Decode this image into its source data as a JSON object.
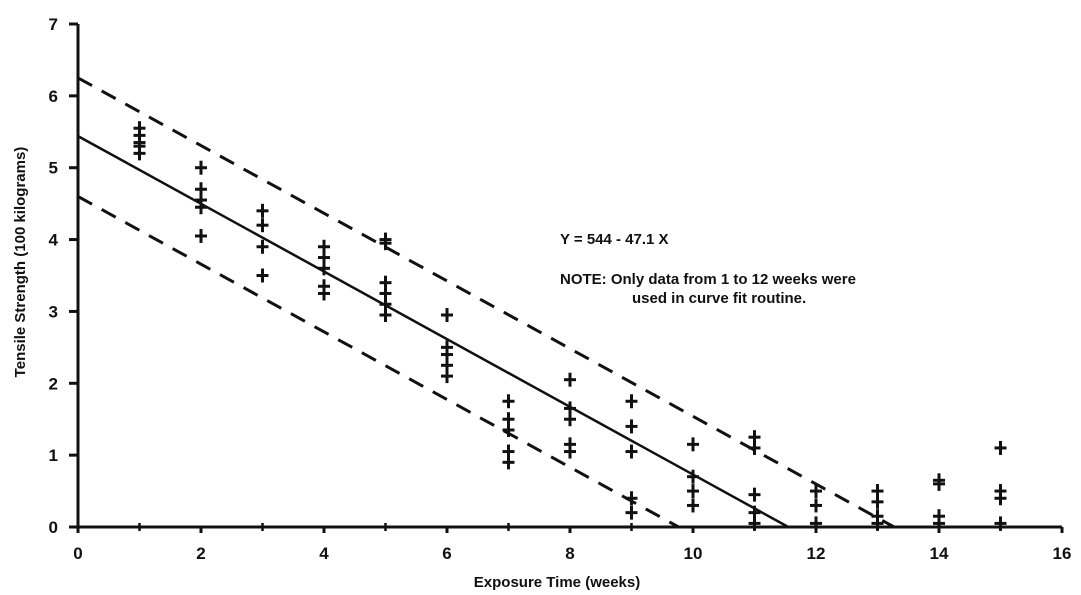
{
  "chart_data": {
    "type": "scatter",
    "title": "",
    "xlabel": "Exposure Time (weeks)",
    "ylabel": "Tensile Strength (100 kilograms)",
    "xlim": [
      0,
      16
    ],
    "ylim": [
      0,
      7
    ],
    "x_ticks": [
      "0",
      "2",
      "4",
      "6",
      "8",
      "10",
      "12",
      "14",
      "16"
    ],
    "y_ticks": [
      "0",
      "1",
      "2",
      "3",
      "4",
      "5",
      "6",
      "7"
    ],
    "grid": false,
    "annotations": {
      "equation": "Y = 544 - 47.1 X",
      "note_line1": "NOTE:  Only data from 1 to 12 weeks were",
      "note_line2": "used in curve fit routine."
    },
    "fit_line": {
      "intercept": 5.44,
      "slope": -0.471
    },
    "confidence_band": {
      "upper_intercept": 6.25,
      "lower_intercept": 4.6,
      "slope": -0.471
    },
    "series": [
      {
        "points": [
          [
            1,
            5.2
          ],
          [
            1,
            5.3
          ],
          [
            1,
            5.35
          ],
          [
            1,
            5.45
          ],
          [
            1,
            5.55
          ],
          [
            2,
            4.05
          ],
          [
            2,
            4.45
          ],
          [
            2,
            4.55
          ],
          [
            2,
            4.7
          ],
          [
            2,
            5.0
          ],
          [
            3,
            3.5
          ],
          [
            3,
            3.9
          ],
          [
            3,
            4.2
          ],
          [
            3,
            4.4
          ],
          [
            4,
            3.25
          ],
          [
            4,
            3.35
          ],
          [
            4,
            3.6
          ],
          [
            4,
            3.75
          ],
          [
            4,
            3.9
          ],
          [
            5,
            2.95
          ],
          [
            5,
            3.1
          ],
          [
            5,
            3.25
          ],
          [
            5,
            3.4
          ],
          [
            5,
            3.95
          ],
          [
            5,
            4.0
          ],
          [
            6,
            2.1
          ],
          [
            6,
            2.25
          ],
          [
            6,
            2.4
          ],
          [
            6,
            2.5
          ],
          [
            6,
            2.95
          ],
          [
            7,
            0.9
          ],
          [
            7,
            1.05
          ],
          [
            7,
            1.35
          ],
          [
            7,
            1.5
          ],
          [
            7,
            1.75
          ],
          [
            8,
            1.05
          ],
          [
            8,
            1.15
          ],
          [
            8,
            1.5
          ],
          [
            8,
            1.65
          ],
          [
            8,
            2.05
          ],
          [
            9,
            0.2
          ],
          [
            9,
            0.4
          ],
          [
            9,
            1.05
          ],
          [
            9,
            1.4
          ],
          [
            9,
            1.75
          ],
          [
            10,
            0.3
          ],
          [
            10,
            0.5
          ],
          [
            10,
            0.7
          ],
          [
            10,
            1.15
          ],
          [
            11,
            0.05
          ],
          [
            11,
            0.2
          ],
          [
            11,
            0.45
          ],
          [
            11,
            1.1
          ],
          [
            11,
            1.25
          ],
          [
            12,
            0.05
          ],
          [
            12,
            0.3
          ],
          [
            12,
            0.5
          ],
          [
            13,
            0.05
          ],
          [
            13,
            0.15
          ],
          [
            13,
            0.35
          ],
          [
            13,
            0.5
          ],
          [
            14,
            0.05
          ],
          [
            14,
            0.15
          ],
          [
            14,
            0.6
          ],
          [
            14,
            0.65
          ],
          [
            15,
            0.05
          ],
          [
            15,
            0.4
          ],
          [
            15,
            0.5
          ],
          [
            15,
            1.1
          ]
        ]
      }
    ]
  }
}
